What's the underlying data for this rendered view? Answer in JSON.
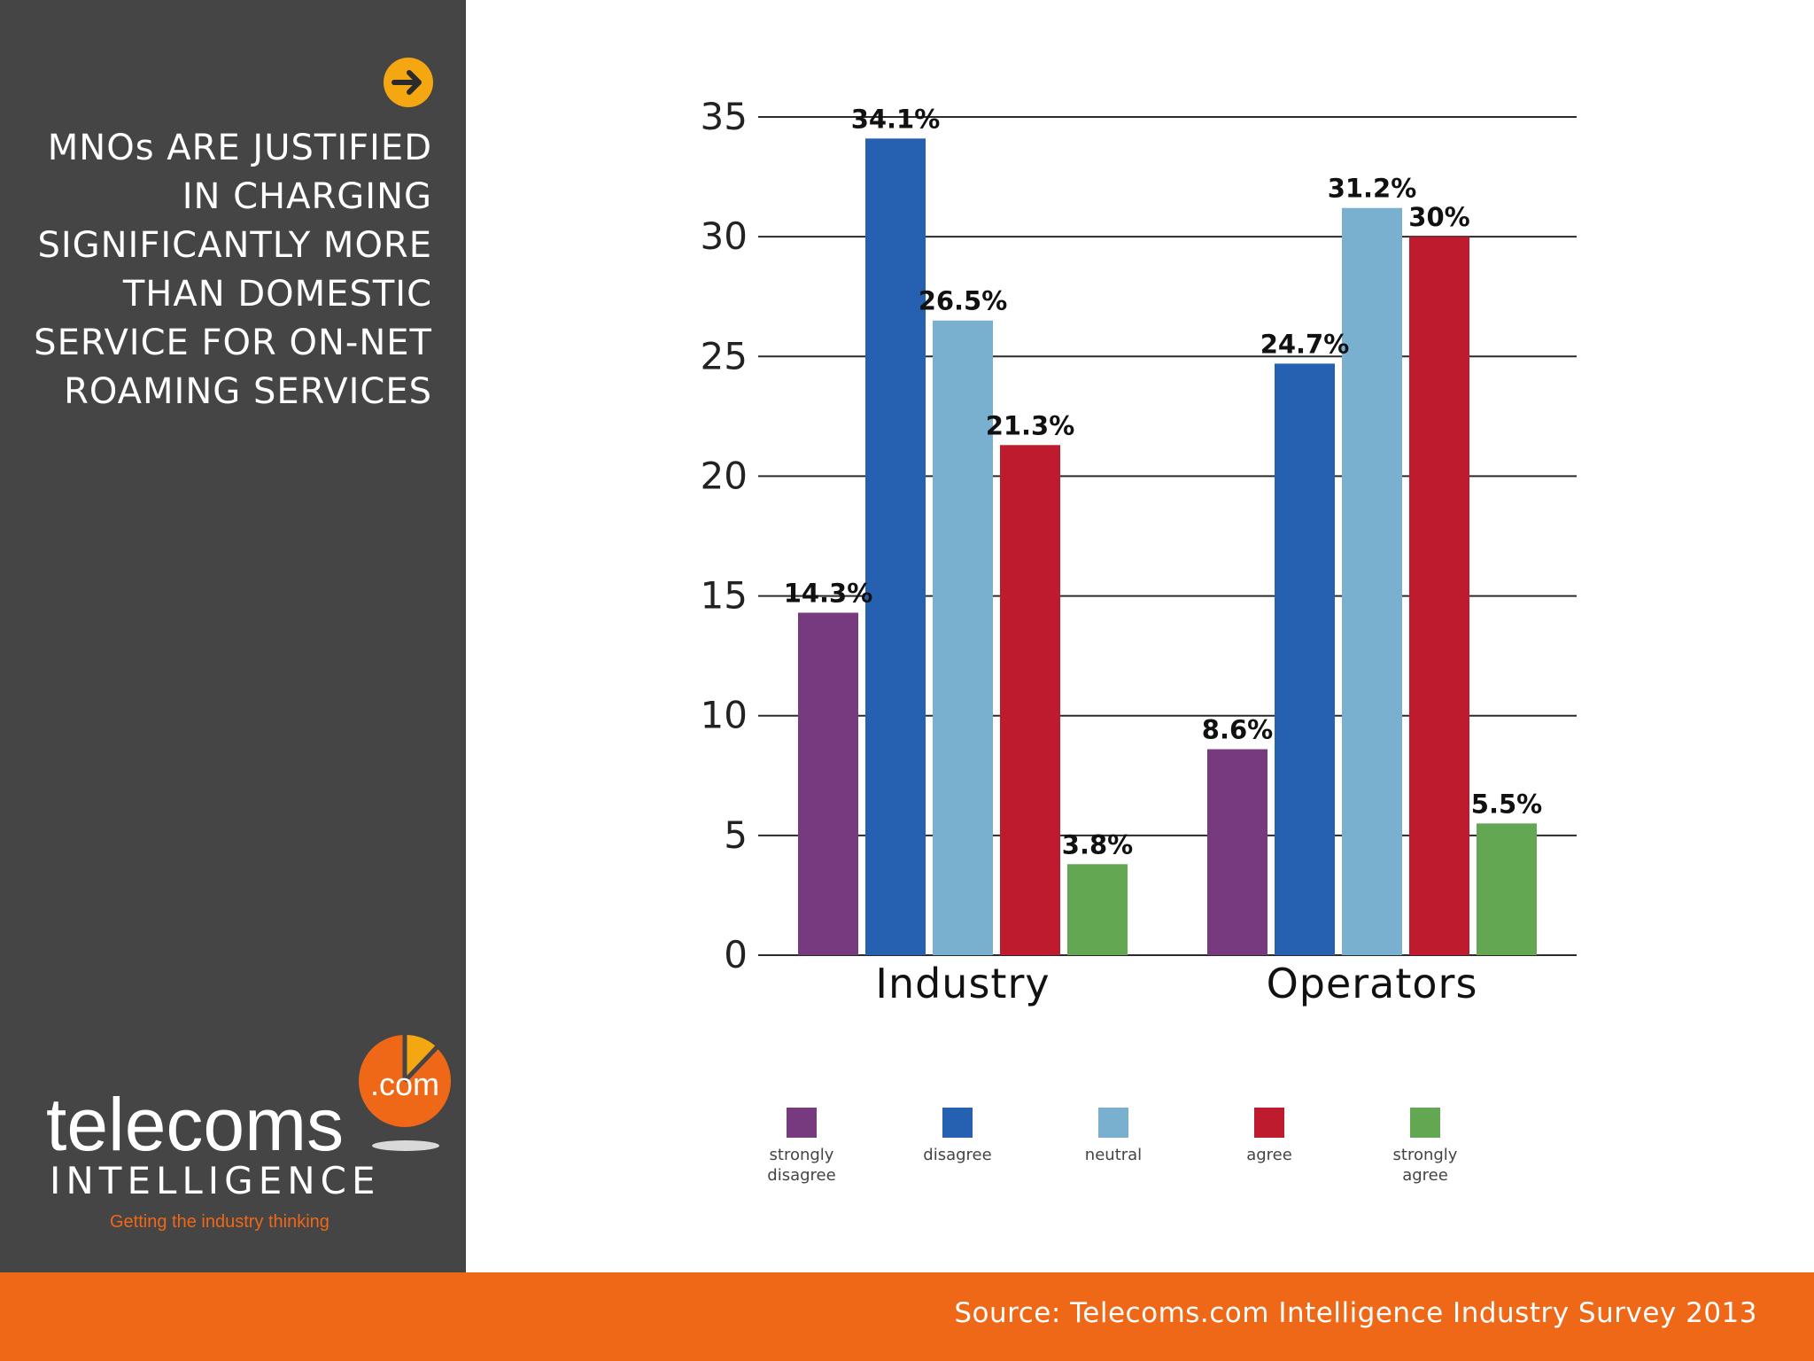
{
  "sidebar": {
    "title": "MNOs ARE JUSTIFIED IN CHARGING SIGNIFICANTLY MORE THAN DOMESTIC SERVICE FOR ON-NET ROAMING SERVICES"
  },
  "brand": {
    "name": "telecoms",
    "dotcom": ".com",
    "subtitle": "INTELLIGENCE",
    "tagline": "Getting the industry thinking"
  },
  "footer": {
    "source": "Source: Telecoms.com Intelligence Industry Survey 2013"
  },
  "colors": {
    "sidebar": "#454545",
    "accent_orange": "#ee6817",
    "arrow_yellow": "#f5a712"
  },
  "chart_data": {
    "type": "bar",
    "title": "MNOs ARE JUSTIFIED IN CHARGING SIGNIFICANTLY MORE THAN DOMESTIC SERVICE FOR ON-NET ROAMING SERVICES",
    "xlabel": "",
    "ylabel": "",
    "ylim": [
      0,
      35
    ],
    "yticks": [
      0,
      5,
      10,
      15,
      20,
      25,
      30,
      35
    ],
    "grid": true,
    "legend_position": "bottom",
    "categories": [
      "Industry",
      "Operators"
    ],
    "series": [
      {
        "name": "strongly disagree",
        "legend_label": "strongly\ndisagree",
        "color": "#773a7e",
        "values": [
          14.3,
          8.6
        ],
        "labels": [
          "14.3%",
          "8.6%"
        ]
      },
      {
        "name": "disagree",
        "legend_label": "disagree",
        "color": "#2561b0",
        "values": [
          34.1,
          24.7
        ],
        "labels": [
          "34.1%",
          "24.7%"
        ]
      },
      {
        "name": "neutral",
        "legend_label": "neutral",
        "color": "#79afcf",
        "values": [
          26.5,
          31.2
        ],
        "labels": [
          "26.5%",
          "31.2%"
        ]
      },
      {
        "name": "agree",
        "legend_label": "agree",
        "color": "#be1b2f",
        "values": [
          21.3,
          30
        ],
        "labels": [
          "21.3%",
          "30%"
        ]
      },
      {
        "name": "strongly agree",
        "legend_label": "strongly\nagree",
        "color": "#63a753",
        "values": [
          3.8,
          5.5
        ],
        "labels": [
          "3.8%",
          "5.5%"
        ]
      }
    ]
  }
}
